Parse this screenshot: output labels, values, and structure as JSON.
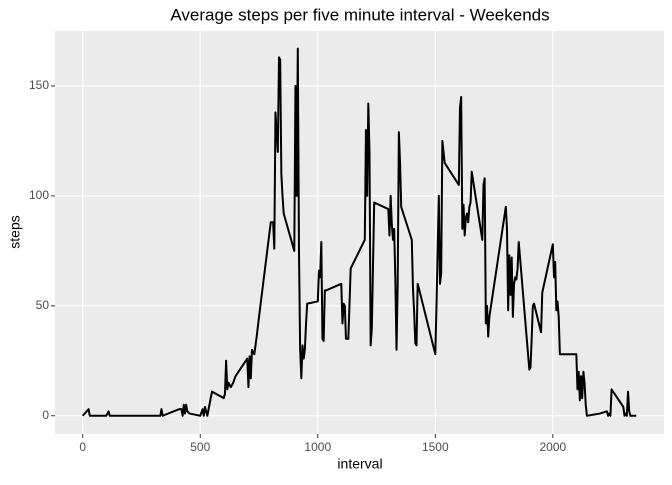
{
  "chart_data": {
    "type": "line",
    "title": "Average steps per five minute interval - Weekends",
    "x_label": "interval",
    "y_label": "steps",
    "x": [
      0,
      25,
      30,
      100,
      110,
      115,
      200,
      330,
      335,
      340,
      410,
      420,
      425,
      430,
      435,
      440,
      445,
      455,
      500,
      510,
      515,
      520,
      530,
      550,
      600,
      605,
      610,
      615,
      620,
      630,
      640,
      650,
      700,
      705,
      710,
      715,
      720,
      730,
      740,
      750,
      800,
      810,
      815,
      820,
      830,
      835,
      840,
      845,
      850,
      855,
      900,
      905,
      910,
      915,
      920,
      925,
      930,
      935,
      940,
      945,
      950,
      955,
      1000,
      1005,
      1010,
      1015,
      1020,
      1025,
      1030,
      1035,
      1100,
      1105,
      1110,
      1115,
      1120,
      1130,
      1140,
      1200,
      1205,
      1210,
      1215,
      1220,
      1225,
      1230,
      1240,
      1300,
      1305,
      1310,
      1315,
      1320,
      1325,
      1330,
      1335,
      1340,
      1345,
      1350,
      1355,
      1400,
      1405,
      1410,
      1415,
      1420,
      1425,
      1430,
      1500,
      1505,
      1510,
      1515,
      1520,
      1525,
      1530,
      1540,
      1600,
      1605,
      1610,
      1615,
      1620,
      1625,
      1630,
      1635,
      1640,
      1645,
      1650,
      1655,
      1700,
      1705,
      1710,
      1715,
      1720,
      1725,
      1730,
      1800,
      1805,
      1810,
      1815,
      1820,
      1825,
      1830,
      1835,
      1840,
      1845,
      1850,
      1855,
      1900,
      1905,
      1910,
      1915,
      1920,
      1950,
      1955,
      2000,
      2005,
      2010,
      2015,
      2020,
      2025,
      2030,
      2100,
      2105,
      2110,
      2115,
      2120,
      2125,
      2130,
      2135,
      2140,
      2145,
      2200,
      2230,
      2235,
      2240,
      2245,
      2250,
      2300,
      2305,
      2310,
      2315,
      2320,
      2325,
      2330,
      2355
    ],
    "series": [
      {
        "name": "steps",
        "color": "#000000",
        "values": [
          0,
          3,
          0,
          0,
          2,
          0,
          0,
          0,
          3,
          0,
          3,
          3,
          0,
          5,
          1,
          5,
          2,
          1,
          0,
          3,
          0,
          4,
          0,
          11,
          8,
          10,
          25,
          12,
          15,
          13,
          15,
          18,
          26,
          13,
          27,
          17,
          30,
          28,
          36,
          45,
          88,
          88,
          76,
          138,
          120,
          163,
          162,
          110,
          100,
          92,
          75,
          150,
          100,
          167,
          75,
          30,
          17,
          32,
          26,
          30,
          42,
          51,
          52,
          66,
          63,
          79,
          35,
          34,
          57,
          57,
          60,
          42,
          51,
          50,
          35,
          35,
          67,
          80,
          130,
          100,
          142,
          120,
          32,
          40,
          97,
          94,
          82,
          100,
          87,
          80,
          85,
          62,
          30,
          60,
          129,
          115,
          95,
          80,
          58,
          47,
          33,
          32,
          60,
          58,
          28,
          50,
          75,
          100,
          60,
          65,
          125,
          115,
          105,
          140,
          145,
          85,
          96,
          82,
          90,
          92,
          88,
          95,
          97,
          111,
          80,
          105,
          108,
          42,
          50,
          36,
          45,
          95,
          85,
          48,
          73,
          55,
          72,
          45,
          60,
          63,
          62,
          67,
          79,
          21,
          22,
          35,
          50,
          51,
          38,
          56,
          78,
          63,
          70,
          48,
          52,
          45,
          28,
          28,
          12,
          20,
          7,
          18,
          8,
          20,
          15,
          5,
          0,
          1,
          2,
          0,
          1,
          0,
          12,
          4,
          0,
          1,
          0,
          11,
          2,
          0,
          0
        ]
      }
    ],
    "xlim": [
      -118,
      2473
    ],
    "ylim": [
      -8.3,
      175
    ],
    "xticks": [
      0,
      500,
      1000,
      1500,
      2000
    ],
    "yticks": [
      0,
      50,
      100,
      150
    ],
    "grid": true
  }
}
